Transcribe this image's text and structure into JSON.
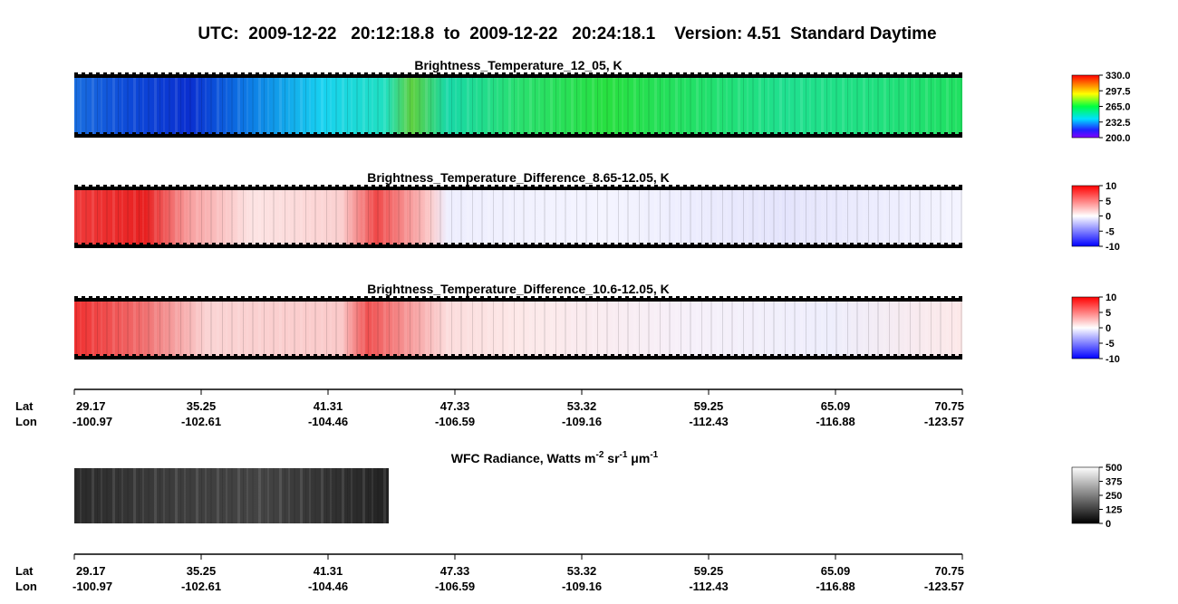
{
  "header": {
    "title": "UTC:  2009-12-22   20:12:18.8  to  2009-12-22   20:24:18.1    Version: 4.51  Standard Daytime"
  },
  "panels": [
    {
      "title": "Brightness_Temperature_12_05, K",
      "colorbar": [
        "330.0",
        "297.5",
        "265.0",
        "232.5",
        "200.0"
      ]
    },
    {
      "title": "Brightness_Temperature_Difference_8.65-12.05, K",
      "colorbar": [
        "10",
        "5",
        "0",
        "-5",
        "-10"
      ]
    },
    {
      "title": "Brightness_Temperature_Difference_10.6-12.05, K",
      "colorbar": [
        "10",
        "5",
        "0",
        "-5",
        "-10"
      ]
    }
  ],
  "wfc": {
    "title": [
      "WFC Radiance, Watts m",
      "-2",
      " sr",
      "-1",
      " μm",
      "-1"
    ],
    "colorbar": [
      "500",
      "375",
      "250",
      "125",
      "0"
    ]
  },
  "axes": [
    {
      "lat_label": "Lat",
      "lon_label": "Lon",
      "lat": [
        "29.17",
        "35.25",
        "41.31",
        "47.33",
        "53.32",
        "59.25",
        "65.09",
        "70.75"
      ],
      "lon": [
        "-100.97",
        "-102.61",
        "-104.46",
        "-106.59",
        "-109.16",
        "-112.43",
        "-116.88",
        "-123.57"
      ]
    },
    {
      "lat_label": "Lat",
      "lon_label": "Lon",
      "lat": [
        "29.17",
        "35.25",
        "41.31",
        "47.33",
        "53.32",
        "59.25",
        "65.09",
        "70.75"
      ],
      "lon": [
        "-100.97",
        "-102.61",
        "-104.46",
        "-106.59",
        "-109.16",
        "-112.43",
        "-116.88",
        "-123.57"
      ]
    }
  ]
}
